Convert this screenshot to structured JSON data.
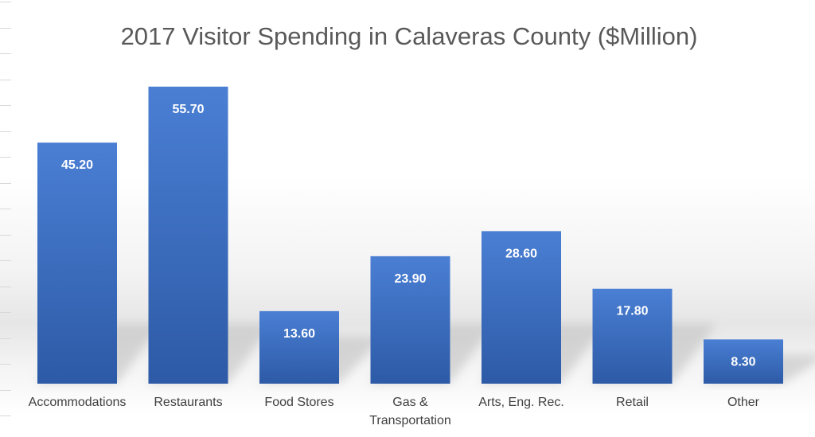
{
  "chart_data": {
    "type": "bar",
    "title": "2017 Visitor Spending in Calaveras County ($Million)",
    "categories": [
      [
        "Accommodations"
      ],
      [
        "Restaurants"
      ],
      [
        "Food Stores"
      ],
      [
        "Gas &",
        "Transportation"
      ],
      [
        "Arts, Eng. Rec."
      ],
      [
        "Retail"
      ],
      [
        "Other"
      ]
    ],
    "values": [
      45.2,
      55.7,
      13.6,
      23.9,
      28.6,
      17.8,
      8.3
    ],
    "value_labels": [
      "45.20",
      "55.70",
      "13.60",
      "23.90",
      "28.60",
      "17.80",
      "8.30"
    ],
    "xlabel": "",
    "ylabel": "",
    "ylim": [
      0,
      60
    ],
    "grid": false,
    "legend": "none",
    "colors": {
      "bar_top": "#4a7fd4",
      "bar_bottom": "#2d5aa6",
      "shadow": "#bdbdbd"
    }
  }
}
